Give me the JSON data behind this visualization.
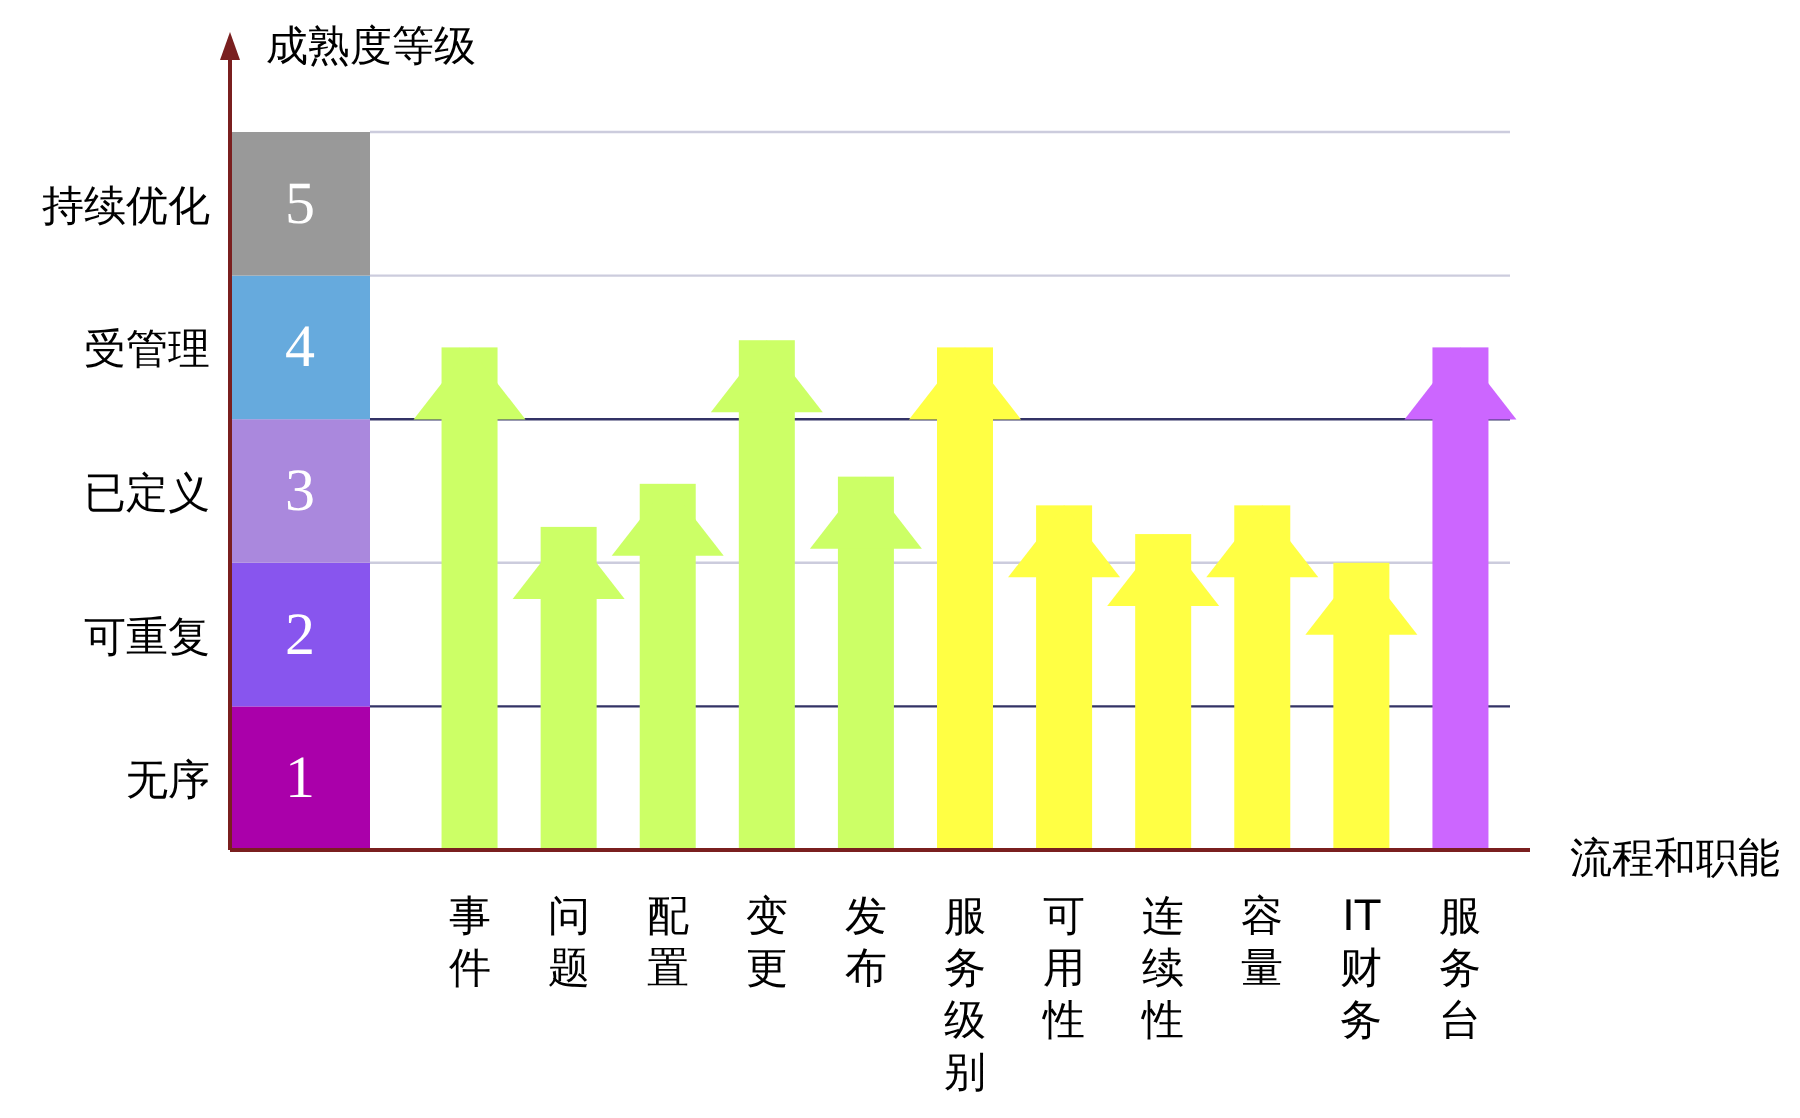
{
  "chart_data": {
    "type": "bar",
    "xlabel": "流程和职能",
    "ylabel": "成熟度等级",
    "categories": [
      "事件",
      "问题",
      "配置",
      "变更",
      "发布",
      "服务级别",
      "可用性",
      "连续性",
      "容量",
      "IT财务",
      "服务台"
    ],
    "values": [
      4.0,
      2.75,
      3.05,
      4.05,
      3.1,
      4.0,
      2.9,
      2.7,
      2.9,
      2.5,
      4.0
    ],
    "colors": [
      "#ccff66",
      "#ccff66",
      "#ccff66",
      "#ccff66",
      "#ccff66",
      "#ffff44",
      "#ffff44",
      "#ffff44",
      "#ffff44",
      "#ffff44",
      "#cc66ff"
    ],
    "ylim": [
      0.5,
      5.5
    ],
    "yticks": [
      1,
      2,
      3,
      4,
      5
    ],
    "annotations": [
      "无序",
      "可重复",
      "已定义",
      "受管理",
      "持续优化"
    ],
    "ref_lines": [
      {
        "axis": "y",
        "value": 1.5,
        "color": "#333366"
      },
      {
        "axis": "y",
        "value": 2.5,
        "color": "#ccccdd"
      },
      {
        "axis": "y",
        "value": 3.5,
        "color": "#333366"
      },
      {
        "axis": "y",
        "value": 4.5,
        "color": "#ccccdd"
      },
      {
        "axis": "y",
        "value": 5.5,
        "color": "#ccccdd"
      }
    ]
  }
}
